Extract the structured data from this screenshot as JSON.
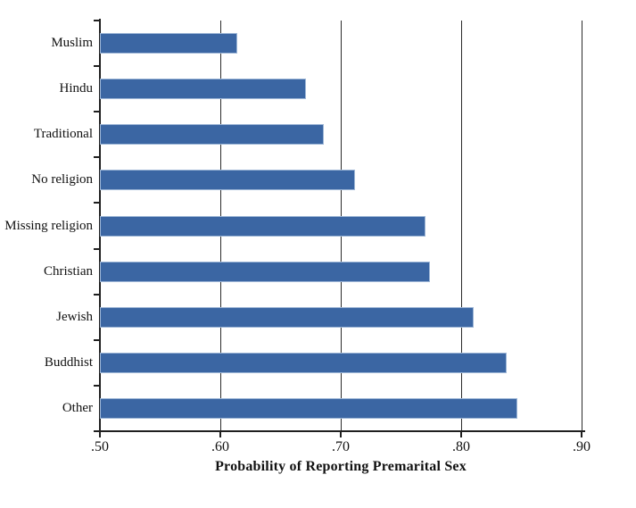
{
  "chart_data": {
    "type": "bar",
    "orientation": "horizontal",
    "title": "",
    "xlabel": "Probability of Reporting Premarital Sex",
    "ylabel": "",
    "categories": [
      "Muslim",
      "Hindu",
      "Traditional",
      "No religion",
      "Missing religion",
      "Christian",
      "Jewish",
      "Buddhist",
      "Other"
    ],
    "values": [
      0.614,
      0.671,
      0.686,
      0.712,
      0.77,
      0.774,
      0.81,
      0.838,
      0.847
    ],
    "xlim": [
      0.5,
      0.9
    ],
    "xticks": [
      0.5,
      0.6,
      0.7,
      0.8,
      0.9
    ],
    "xtick_labels": [
      ".50",
      ".60",
      ".70",
      ".80",
      ".90"
    ],
    "grid": "vertical-gridlines-at-xticks",
    "legend": "none",
    "bar_color": "#3b66a3",
    "bar_edge_color": "#9db6d6",
    "axis_color": "#1f1f1f",
    "background_color": "#ffffff"
  }
}
